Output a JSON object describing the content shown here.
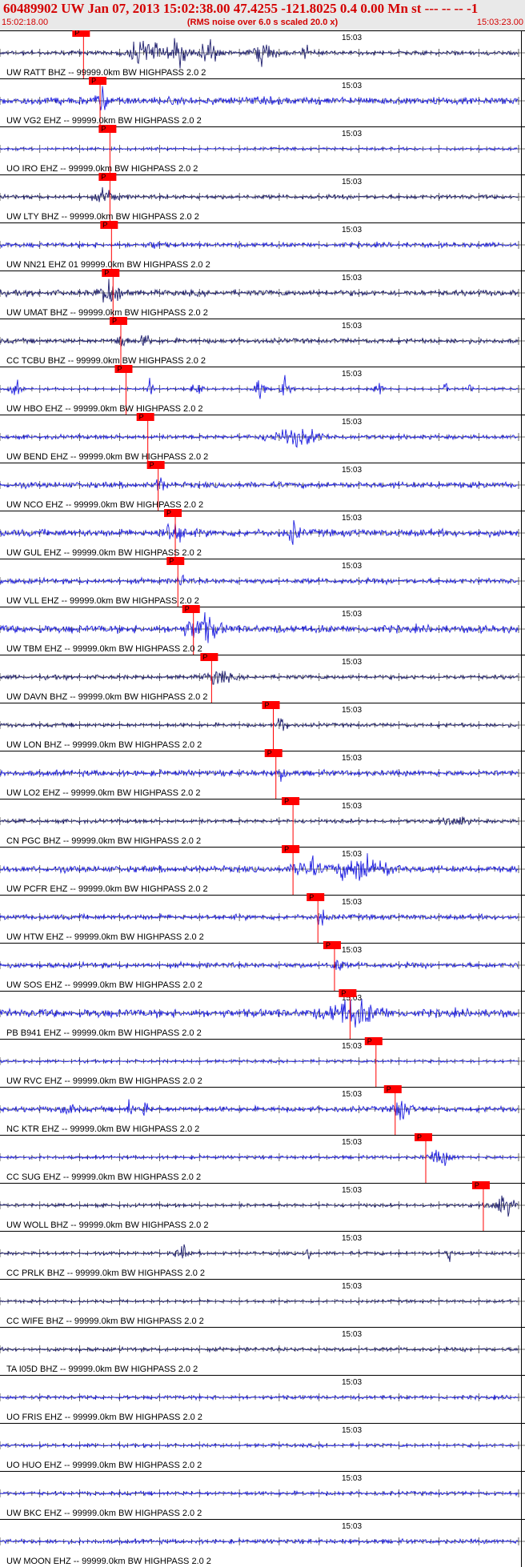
{
  "header": {
    "title": "60489902 UW Jan 07, 2013 15:02:38.00   47.4255 -121.8025  0.4 0.00 Mn st --- -- --   -1",
    "start_time": "15:02:18.00",
    "noise_note": "(RMS noise over 6.0 s scaled 20.0 x)",
    "end_time": "15:03:23.00"
  },
  "chart_data": {
    "type": "line",
    "title": "60489902 UW Jan 07, 2013 15:02:38.00   47.4255 -121.8025  0.4 0.00 Mn st --- -- --   -1",
    "x_range": [
      "15:02:18.00",
      "15:03:23.00"
    ],
    "minute_label": "15:03",
    "pick_label": "P",
    "trace_colors": [
      "#1f1fe0",
      "#1f1f6e"
    ],
    "pick_color": "#ff0000",
    "traces": [
      {
        "label": "UW RATT BHZ -- 99999.0km BW  HIGHPASS  2.0  2",
        "color_index": 1,
        "pick_x": 0.161,
        "noise": 0.16,
        "bursts": [
          [
            0.28,
            0.03,
            1.0
          ],
          [
            0.345,
            0.02,
            0.9
          ],
          [
            0.4,
            0.02,
            0.9
          ],
          [
            0.51,
            0.02,
            0.85
          ],
          [
            0.59,
            0.01,
            0.4
          ]
        ]
      },
      {
        "label": "UW VG2 EHZ -- 99999.0km BW  HIGHPASS  2.0  2",
        "color_index": 0,
        "pick_x": 0.193,
        "noise": 0.3,
        "bursts": [
          [
            0.195,
            0.01,
            0.8
          ]
        ]
      },
      {
        "label": "UO IRO EHZ -- 99999.0km BW  HIGHPASS  2.0  2",
        "color_index": 0,
        "pick_x": 0.212,
        "noise": 0.1,
        "bursts": []
      },
      {
        "label": "UW LTY BHZ -- 99999.0km BW  HIGHPASS  2.0  2",
        "color_index": 1,
        "pick_x": 0.212,
        "noise": 0.16,
        "bursts": [
          [
            0.205,
            0.02,
            0.5
          ]
        ]
      },
      {
        "label": "UW NN21 EHZ 01 99999.0km BW  HIGHPASS  2.0  2",
        "color_index": 0,
        "pick_x": 0.215,
        "noise": 0.18,
        "bursts": [
          [
            0.3,
            0.01,
            0.3
          ]
        ]
      },
      {
        "label": "UW UMAT BHZ -- 99999.0km BW  HIGHPASS  2.0  2",
        "color_index": 1,
        "pick_x": 0.218,
        "noise": 0.22,
        "bursts": [
          [
            0.215,
            0.02,
            1.0
          ]
        ]
      },
      {
        "label": "CC TCBU BHZ -- 99999.0km BW  HIGHPASS  2.0  2",
        "color_index": 1,
        "pick_x": 0.233,
        "noise": 0.18,
        "bursts": [
          [
            0.235,
            0.01,
            0.6
          ],
          [
            0.28,
            0.01,
            0.4
          ]
        ]
      },
      {
        "label": "UW HBO EHZ -- 99999.0km BW  HIGHPASS  2.0  2",
        "color_index": 0,
        "pick_x": 0.243,
        "noise": 0.08,
        "bursts": [
          [
            0.03,
            0.01,
            0.6
          ],
          [
            0.29,
            0.005,
            0.8
          ],
          [
            0.38,
            0.01,
            0.6
          ],
          [
            0.5,
            0.01,
            0.9
          ],
          [
            0.55,
            0.01,
            0.8
          ],
          [
            0.73,
            0.01,
            0.5
          ],
          [
            0.86,
            0.005,
            0.7
          ],
          [
            0.905,
            0.005,
            0.5
          ]
        ]
      },
      {
        "label": "UW BEND EHZ -- 99999.0km BW  HIGHPASS  2.0  2",
        "color_index": 0,
        "pick_x": 0.285,
        "noise": 0.16,
        "bursts": [
          [
            0.57,
            0.05,
            0.6
          ]
        ]
      },
      {
        "label": "UW NCO EHZ -- 99999.0km BW  HIGHPASS  2.0  2",
        "color_index": 0,
        "pick_x": 0.305,
        "noise": 0.22,
        "bursts": [
          [
            0.31,
            0.01,
            0.5
          ]
        ]
      },
      {
        "label": "UW GUL EHZ -- 99999.0km BW  HIGHPASS  2.0  2",
        "color_index": 0,
        "pick_x": 0.338,
        "noise": 0.28,
        "bursts": [
          [
            0.335,
            0.02,
            0.8
          ],
          [
            0.565,
            0.01,
            0.9
          ]
        ]
      },
      {
        "label": "UW VLL EHZ -- 99999.0km BW  HIGHPASS  2.0  2",
        "color_index": 0,
        "pick_x": 0.343,
        "noise": 0.2,
        "bursts": [
          [
            0.35,
            0.005,
            0.9
          ]
        ]
      },
      {
        "label": "UW TBM EHZ -- 99999.0km BW  HIGHPASS  2.0  2",
        "color_index": 0,
        "pick_x": 0.373,
        "noise": 0.3,
        "bursts": [
          [
            0.39,
            0.03,
            1.0
          ]
        ]
      },
      {
        "label": "UW DAVN BHZ -- 99999.0km BW  HIGHPASS  2.0  2",
        "color_index": 1,
        "pick_x": 0.408,
        "noise": 0.16,
        "bursts": [
          [
            0.42,
            0.02,
            0.6
          ]
        ]
      },
      {
        "label": "UW LON BHZ -- 99999.0km BW  HIGHPASS  2.0  2",
        "color_index": 1,
        "pick_x": 0.527,
        "noise": 0.14,
        "bursts": [
          [
            0.545,
            0.01,
            0.7
          ]
        ]
      },
      {
        "label": "UW LO2 EHZ -- 99999.0km BW  HIGHPASS  2.0  2",
        "color_index": 0,
        "pick_x": 0.532,
        "noise": 0.22,
        "bursts": [
          [
            0.545,
            0.005,
            1.0
          ]
        ]
      },
      {
        "label": "CN PGC BHZ -- 99999.0km BW  HIGHPASS  2.0  2",
        "color_index": 1,
        "pick_x": 0.565,
        "noise": 0.14,
        "bursts": [
          [
            0.88,
            0.02,
            0.4
          ]
        ]
      },
      {
        "label": "UW PCFR EHZ -- 99999.0km BW  HIGHPASS  2.0  2",
        "color_index": 0,
        "pick_x": 0.565,
        "noise": 0.24,
        "bursts": [
          [
            0.59,
            0.02,
            1.0
          ],
          [
            0.7,
            0.05,
            1.0
          ]
        ]
      },
      {
        "label": "UW HTW EHZ -- 99999.0km BW  HIGHPASS  2.0  2",
        "color_index": 0,
        "pick_x": 0.613,
        "noise": 0.2,
        "bursts": [
          [
            0.62,
            0.01,
            0.6
          ]
        ]
      },
      {
        "label": "UW SOS EHZ -- 99999.0km BW  HIGHPASS  2.0  2",
        "color_index": 0,
        "pick_x": 0.645,
        "noise": 0.2,
        "bursts": [
          [
            0.65,
            0.01,
            0.5
          ]
        ]
      },
      {
        "label": "PB B941 EHZ -- 99999.0km BW  HIGHPASS  2.0  2",
        "color_index": 0,
        "pick_x": 0.675,
        "noise": 0.32,
        "bursts": [
          [
            0.68,
            0.05,
            0.9
          ]
        ]
      },
      {
        "label": "UW RVC EHZ -- 99999.0km BW  HIGHPASS  2.0  2",
        "color_index": 0,
        "pick_x": 0.725,
        "noise": 0.1,
        "bursts": []
      },
      {
        "label": "NC KTR EHZ -- 99999.0km BW  HIGHPASS  2.0  2",
        "color_index": 0,
        "pick_x": 0.762,
        "noise": 0.2,
        "bursts": [
          [
            0.13,
            0.01,
            0.6
          ],
          [
            0.25,
            0.005,
            0.9
          ],
          [
            0.28,
            0.005,
            0.6
          ],
          [
            0.775,
            0.015,
            1.0
          ]
        ]
      },
      {
        "label": "CC SUG EHZ -- 99999.0km BW  HIGHPASS  2.0  2",
        "color_index": 0,
        "pick_x": 0.821,
        "noise": 0.12,
        "bursts": [
          [
            0.85,
            0.02,
            0.6
          ]
        ]
      },
      {
        "label": "UW WOLL BHZ -- 99999.0km BW  HIGHPASS  2.0  2",
        "color_index": 1,
        "pick_x": 0.932,
        "noise": 0.12,
        "bursts": [
          [
            0.97,
            0.02,
            0.8
          ]
        ]
      },
      {
        "label": "CC PRLK BHZ -- 99999.0km BW  HIGHPASS  2.0  2",
        "color_index": 1,
        "pick_x": null,
        "noise": 0.12,
        "bursts": [
          [
            0.35,
            0.01,
            0.7
          ],
          [
            0.595,
            0.005,
            0.6
          ],
          [
            0.865,
            0.005,
            0.8
          ]
        ]
      },
      {
        "label": "CC WIFE BHZ -- 99999.0km BW  HIGHPASS  2.0  2",
        "color_index": 1,
        "pick_x": null,
        "noise": 0.1,
        "bursts": []
      },
      {
        "label": "TA I05D BHZ -- 99999.0km BW  HIGHPASS  2.0  2",
        "color_index": 1,
        "pick_x": null,
        "noise": 0.14,
        "bursts": []
      },
      {
        "label": "UO FRIS EHZ -- 99999.0km BW  HIGHPASS  2.0  2",
        "color_index": 0,
        "pick_x": null,
        "noise": 0.14,
        "bursts": []
      },
      {
        "label": "UO HUO EHZ -- 99999.0km BW  HIGHPASS  2.0  2",
        "color_index": 0,
        "pick_x": null,
        "noise": 0.12,
        "bursts": []
      },
      {
        "label": "UW BKC EHZ -- 99999.0km BW  HIGHPASS  2.0  2",
        "color_index": 0,
        "pick_x": null,
        "noise": 0.14,
        "bursts": []
      },
      {
        "label": "UW MOON EHZ -- 99999.0km BW  HIGHPASS  2.0  2",
        "color_index": 0,
        "pick_x": null,
        "noise": 0.16,
        "bursts": []
      }
    ]
  }
}
